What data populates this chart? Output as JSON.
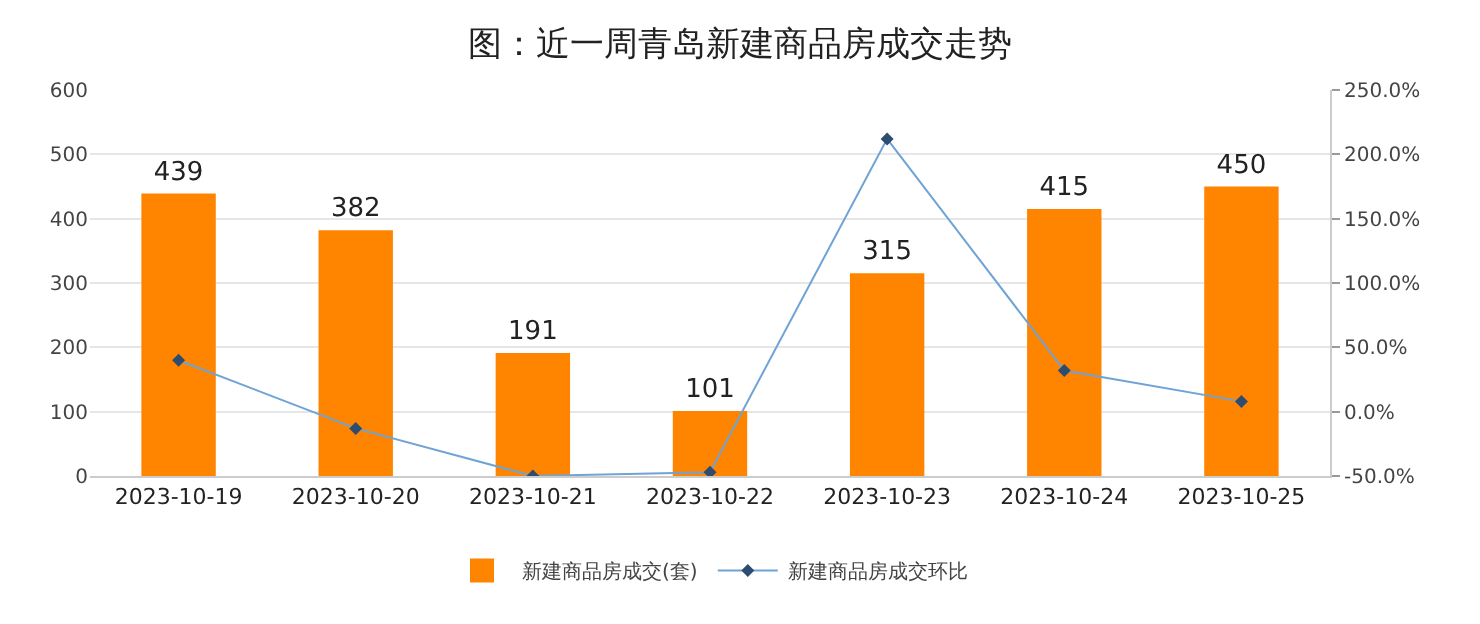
{
  "chart_data": {
    "type": "bar",
    "title": "图：近一周青岛新建商品房成交走势",
    "categories": [
      "2023-10-19",
      "2023-10-20",
      "2023-10-21",
      "2023-10-22",
      "2023-10-23",
      "2023-10-24",
      "2023-10-25"
    ],
    "series": [
      {
        "name": "新建商品房成交(套)",
        "color": "#ff8400",
        "values": [
          439,
          382,
          191,
          101,
          315,
          415,
          450
        ],
        "value_labels": [
          "439",
          "382",
          "191",
          "101",
          "315",
          "415",
          "450"
        ]
      },
      {
        "name": "新建商品房成交环比",
        "type": "line",
        "axis": "y2",
        "color": "#6fa3d6",
        "marker": "diamond",
        "values": [
          40,
          -13,
          -50,
          -47,
          212,
          32,
          8
        ]
      }
    ],
    "ylim": [
      0,
      600
    ],
    "yticks": [
      0,
      100,
      200,
      300,
      400,
      500,
      600
    ],
    "y2lim": [
      -50,
      250
    ],
    "y2ticks": [
      {
        "value": -50,
        "label": "-50.0%"
      },
      {
        "value": 0,
        "label": "0.0%"
      },
      {
        "value": 50,
        "label": "50.0%"
      },
      {
        "value": 100,
        "label": "100.0%"
      },
      {
        "value": 150,
        "label": "150.0%"
      },
      {
        "value": 200,
        "label": "200.0%"
      },
      {
        "value": 250,
        "label": "250.0%"
      }
    ],
    "grid": "y",
    "legend": "bottom"
  }
}
